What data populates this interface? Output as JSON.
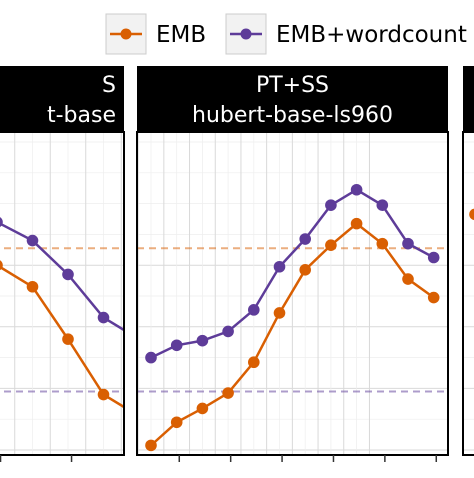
{
  "legend": {
    "items": [
      {
        "label": "EMB",
        "color": "#d95f02"
      },
      {
        "label": "EMB+wordcount",
        "color": "#5e3c99"
      }
    ],
    "placement": "top-right"
  },
  "chart_data": [
    {
      "type": "line",
      "title_lines": [
        "S",
        "t-base"
      ],
      "x": [
        1,
        2,
        3,
        4,
        5,
        6,
        7
      ],
      "ylim": [
        0,
        1
      ],
      "grid": true,
      "series": [
        {
          "name": "EMB",
          "color": "#d95f02",
          "values": [
            0.62,
            0.6,
            0.53,
            0.36,
            0.18,
            0.11,
            0.05
          ]
        },
        {
          "name": "EMB+wordcount",
          "color": "#5e3c99",
          "values": [
            0.7,
            0.74,
            0.68,
            0.57,
            0.43,
            0.36,
            0.33
          ]
        }
      ],
      "hlines": [
        {
          "series": "EMB",
          "value": 0.655
        },
        {
          "series": "EMB+wordcount",
          "value": 0.19
        }
      ]
    },
    {
      "type": "line",
      "title_lines": [
        "PT+SS",
        "hubert-base-ls960"
      ],
      "x": [
        1,
        2,
        3,
        4,
        5,
        6,
        7,
        8,
        9,
        10,
        11,
        12
      ],
      "ylim": [
        0,
        1
      ],
      "grid": true,
      "series": [
        {
          "name": "EMB",
          "color": "#d95f02",
          "values": [
            0.015,
            0.09,
            0.135,
            0.185,
            0.285,
            0.445,
            0.585,
            0.665,
            0.735,
            0.67,
            0.555,
            0.495
          ]
        },
        {
          "name": "EMB+wordcount",
          "color": "#5e3c99",
          "values": [
            0.3,
            0.34,
            0.355,
            0.385,
            0.455,
            0.595,
            0.685,
            0.795,
            0.845,
            0.795,
            0.67,
            0.625
          ]
        }
      ],
      "hlines": [
        {
          "series": "EMB",
          "value": 0.655
        },
        {
          "series": "EMB+wordcount",
          "value": 0.19
        }
      ]
    },
    {
      "type": "line",
      "title_lines": [],
      "x": [
        1
      ],
      "ylim": [
        0,
        1
      ],
      "grid": true,
      "series": [
        {
          "name": "EMB",
          "color": "#d95f02",
          "values": [
            0.765
          ]
        }
      ],
      "hlines": []
    }
  ]
}
